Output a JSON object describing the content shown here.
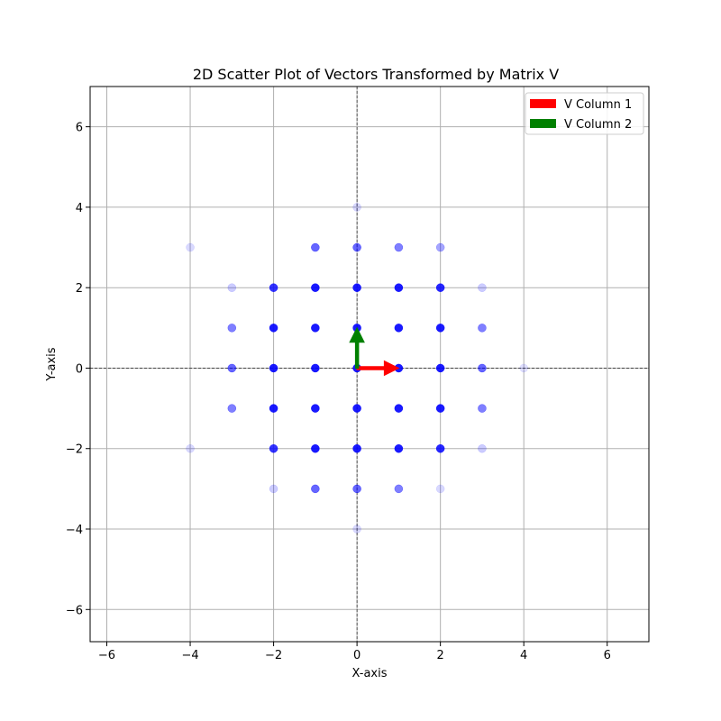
{
  "chart_data": {
    "type": "scatter",
    "title": "2D Scatter Plot of Vectors Transformed by Matrix V",
    "xlabel": "X-axis",
    "ylabel": "Y-axis",
    "xlim": [
      -6.4,
      7
    ],
    "ylim": [
      -6.8,
      7
    ],
    "xticks": [
      -6,
      -4,
      -2,
      0,
      2,
      4,
      6
    ],
    "yticks": [
      -6,
      -4,
      -2,
      0,
      2,
      4,
      6
    ],
    "grid": true,
    "legend_position": "top-right",
    "point_color": "#0000ff",
    "points": [
      {
        "x": -4,
        "y": 3,
        "alpha": 0.15
      },
      {
        "x": -4,
        "y": -2,
        "alpha": 0.15
      },
      {
        "x": -3,
        "y": 2,
        "alpha": 0.2
      },
      {
        "x": -3,
        "y": 1,
        "alpha": 0.5
      },
      {
        "x": -3,
        "y": 0,
        "alpha": 0.6
      },
      {
        "x": -3,
        "y": -1,
        "alpha": 0.5
      },
      {
        "x": -2,
        "y": 2,
        "alpha": 0.8
      },
      {
        "x": -2,
        "y": 1,
        "alpha": 0.9
      },
      {
        "x": -2,
        "y": 0,
        "alpha": 0.9
      },
      {
        "x": -2,
        "y": -1,
        "alpha": 0.9
      },
      {
        "x": -2,
        "y": -2,
        "alpha": 0.8
      },
      {
        "x": -2,
        "y": -3,
        "alpha": 0.2
      },
      {
        "x": -1,
        "y": 3,
        "alpha": 0.6
      },
      {
        "x": -1,
        "y": 2,
        "alpha": 0.9
      },
      {
        "x": -1,
        "y": 1,
        "alpha": 0.9
      },
      {
        "x": -1,
        "y": 0,
        "alpha": 0.9
      },
      {
        "x": -1,
        "y": -1,
        "alpha": 0.9
      },
      {
        "x": -1,
        "y": -2,
        "alpha": 0.9
      },
      {
        "x": -1,
        "y": -3,
        "alpha": 0.6
      },
      {
        "x": 0,
        "y": 4,
        "alpha": 0.15
      },
      {
        "x": 0,
        "y": 3,
        "alpha": 0.6
      },
      {
        "x": 0,
        "y": 2,
        "alpha": 0.9
      },
      {
        "x": 0,
        "y": 1,
        "alpha": 0.9
      },
      {
        "x": 0,
        "y": 0,
        "alpha": 0.9
      },
      {
        "x": 0,
        "y": -1,
        "alpha": 0.9
      },
      {
        "x": 0,
        "y": -2,
        "alpha": 0.9
      },
      {
        "x": 0,
        "y": -3,
        "alpha": 0.6
      },
      {
        "x": 0,
        "y": -4,
        "alpha": 0.15
      },
      {
        "x": 1,
        "y": 3,
        "alpha": 0.5
      },
      {
        "x": 1,
        "y": 2,
        "alpha": 0.9
      },
      {
        "x": 1,
        "y": 1,
        "alpha": 0.9
      },
      {
        "x": 1,
        "y": 0,
        "alpha": 0.9
      },
      {
        "x": 1,
        "y": -1,
        "alpha": 0.9
      },
      {
        "x": 1,
        "y": -2,
        "alpha": 0.9
      },
      {
        "x": 1,
        "y": -3,
        "alpha": 0.5
      },
      {
        "x": 2,
        "y": 3,
        "alpha": 0.35
      },
      {
        "x": 2,
        "y": 2,
        "alpha": 0.85
      },
      {
        "x": 2,
        "y": 1,
        "alpha": 0.9
      },
      {
        "x": 2,
        "y": 0,
        "alpha": 0.9
      },
      {
        "x": 2,
        "y": -1,
        "alpha": 0.9
      },
      {
        "x": 2,
        "y": -2,
        "alpha": 0.85
      },
      {
        "x": 2,
        "y": -3,
        "alpha": 0.15
      },
      {
        "x": 3,
        "y": 2,
        "alpha": 0.2
      },
      {
        "x": 3,
        "y": 1,
        "alpha": 0.5
      },
      {
        "x": 3,
        "y": 0,
        "alpha": 0.6
      },
      {
        "x": 3,
        "y": -1,
        "alpha": 0.5
      },
      {
        "x": 3,
        "y": -2,
        "alpha": 0.2
      },
      {
        "x": 4,
        "y": 0,
        "alpha": 0.12
      }
    ],
    "vectors": [
      {
        "name": "V Column 1",
        "color": "#ff0000",
        "from": [
          0,
          0
        ],
        "to": [
          1,
          0
        ]
      },
      {
        "name": "V Column 2",
        "color": "#008000",
        "from": [
          0,
          0
        ],
        "to": [
          0,
          1
        ]
      }
    ]
  }
}
